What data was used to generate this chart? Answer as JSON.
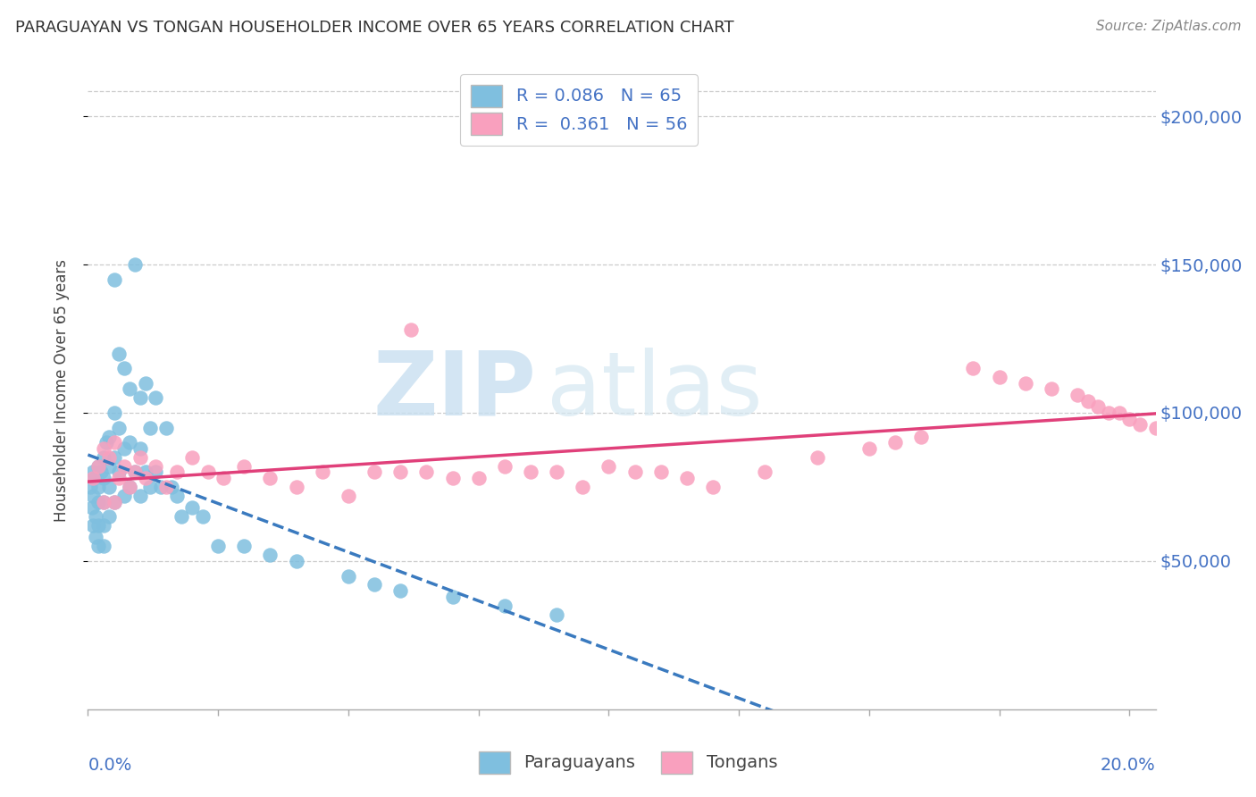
{
  "title": "PARAGUAYAN VS TONGAN HOUSEHOLDER INCOME OVER 65 YEARS CORRELATION CHART",
  "source": "Source: ZipAtlas.com",
  "ylabel": "Householder Income Over 65 years",
  "ytick_values": [
    50000,
    100000,
    150000,
    200000
  ],
  "ylim": [
    0,
    215000
  ],
  "xlim": [
    0.0,
    0.205
  ],
  "blue_scatter_color": "#7fbfdf",
  "pink_scatter_color": "#f9a0be",
  "blue_line_color": "#3a7abf",
  "pink_line_color": "#e0407a",
  "legend_r1": "0.086",
  "legend_n1": "65",
  "legend_r2": "0.361",
  "legend_n2": "56",
  "paraguayan_x": [
    0.0005,
    0.0008,
    0.001,
    0.001,
    0.001,
    0.0012,
    0.0015,
    0.0015,
    0.002,
    0.002,
    0.002,
    0.002,
    0.002,
    0.0025,
    0.003,
    0.003,
    0.003,
    0.003,
    0.003,
    0.0035,
    0.004,
    0.004,
    0.004,
    0.004,
    0.005,
    0.005,
    0.005,
    0.005,
    0.006,
    0.006,
    0.006,
    0.007,
    0.007,
    0.007,
    0.008,
    0.008,
    0.008,
    0.009,
    0.009,
    0.01,
    0.01,
    0.01,
    0.011,
    0.011,
    0.012,
    0.012,
    0.013,
    0.013,
    0.014,
    0.015,
    0.016,
    0.017,
    0.018,
    0.02,
    0.022,
    0.025,
    0.03,
    0.035,
    0.04,
    0.05,
    0.055,
    0.06,
    0.07,
    0.08,
    0.09
  ],
  "paraguayan_y": [
    75000,
    68000,
    80000,
    72000,
    62000,
    78000,
    65000,
    58000,
    82000,
    75000,
    70000,
    62000,
    55000,
    80000,
    85000,
    78000,
    70000,
    62000,
    55000,
    90000,
    92000,
    82000,
    75000,
    65000,
    145000,
    100000,
    85000,
    70000,
    120000,
    95000,
    80000,
    115000,
    88000,
    72000,
    108000,
    90000,
    75000,
    150000,
    80000,
    105000,
    88000,
    72000,
    110000,
    80000,
    95000,
    75000,
    105000,
    80000,
    75000,
    95000,
    75000,
    72000,
    65000,
    68000,
    65000,
    55000,
    55000,
    52000,
    50000,
    45000,
    42000,
    40000,
    38000,
    35000,
    32000
  ],
  "tongan_x": [
    0.001,
    0.002,
    0.003,
    0.003,
    0.004,
    0.005,
    0.005,
    0.006,
    0.007,
    0.008,
    0.009,
    0.01,
    0.011,
    0.013,
    0.015,
    0.017,
    0.02,
    0.023,
    0.026,
    0.03,
    0.035,
    0.04,
    0.045,
    0.05,
    0.055,
    0.06,
    0.07,
    0.08,
    0.09,
    0.1,
    0.11,
    0.115,
    0.12,
    0.13,
    0.14,
    0.15,
    0.155,
    0.16,
    0.17,
    0.175,
    0.18,
    0.185,
    0.19,
    0.192,
    0.194,
    0.196,
    0.198,
    0.2,
    0.202,
    0.205,
    0.062,
    0.065,
    0.075,
    0.085,
    0.095,
    0.105
  ],
  "tongan_y": [
    78000,
    82000,
    88000,
    70000,
    85000,
    90000,
    70000,
    78000,
    82000,
    75000,
    80000,
    85000,
    78000,
    82000,
    75000,
    80000,
    85000,
    80000,
    78000,
    82000,
    78000,
    75000,
    80000,
    72000,
    80000,
    80000,
    78000,
    82000,
    80000,
    82000,
    80000,
    78000,
    75000,
    80000,
    85000,
    88000,
    90000,
    92000,
    115000,
    112000,
    110000,
    108000,
    106000,
    104000,
    102000,
    100000,
    100000,
    98000,
    96000,
    95000,
    128000,
    80000,
    78000,
    80000,
    75000,
    80000
  ]
}
